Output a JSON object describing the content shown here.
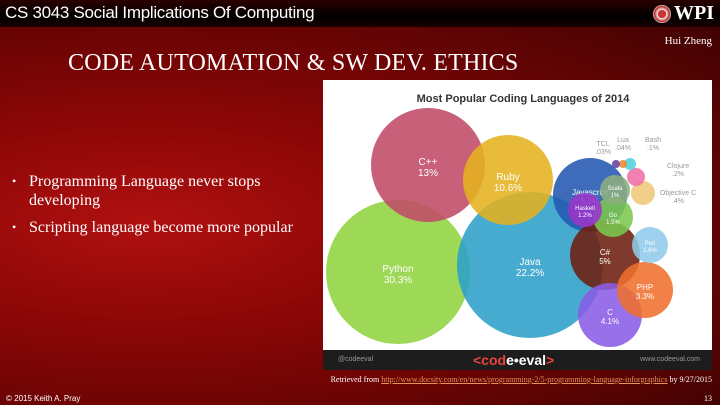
{
  "header": {
    "course": "CS 3043 Social Implications Of Computing",
    "logo": "WPI",
    "author": "Hui Zheng"
  },
  "slide": {
    "title": "CODE AUTOMATION & SW DEV. ETHICS",
    "bullets": [
      "Programming Language never stops developing",
      "Scripting language become more popular"
    ]
  },
  "infographic": {
    "title": "Most Popular Coding Languages of 2014",
    "footer_left": "@codeeval",
    "footer_brand_left": "<cod",
    "footer_brand_mid": "e•eval",
    "footer_brand_right": ">",
    "footer_right": "www.codeeval.com",
    "languages": [
      {
        "name": "Python",
        "share": "30.3%",
        "color": "#8fd43f"
      },
      {
        "name": "Java",
        "share": "22.2%",
        "color": "#2d9fc9"
      },
      {
        "name": "C++",
        "share": "13%",
        "color": "#c04a67"
      },
      {
        "name": "Ruby",
        "share": "10.6%",
        "color": "#e5b21f"
      },
      {
        "name": "Javascript",
        "share": "5.2%",
        "color": "#2458b0"
      },
      {
        "name": "C#",
        "share": "5%",
        "color": "#6e1f10"
      },
      {
        "name": "C",
        "share": "4.1%",
        "color": "#8a5ce6"
      },
      {
        "name": "PHP",
        "share": "3.3%",
        "color": "#ef6f2e"
      },
      {
        "name": "Perl",
        "share": "1.6%",
        "color": "#8fcbea"
      },
      {
        "name": "Go",
        "share": "1.5%",
        "color": "#7ac74f"
      },
      {
        "name": "Haskell",
        "share": "1.2%",
        "color": "#9b35c9"
      },
      {
        "name": "Scala",
        "share": "1%",
        "color": "#8cae7e"
      },
      {
        "name": "Objective C",
        "share": ".4%",
        "color": "#f0c878"
      },
      {
        "name": "Clojure",
        "share": ".2%",
        "color": "#ef6fa8"
      },
      {
        "name": "Bash",
        "share": ".1%",
        "color": "#4fd0e0"
      },
      {
        "name": "Lua",
        "share": ".04%",
        "color": "#f08a2a"
      },
      {
        "name": "TCL",
        "share": ".03%",
        "color": "#6a3fa0"
      }
    ]
  },
  "credit": {
    "prefix": "Retrieved from",
    "url": "http://www.docsity.com/en/news/programming-2/5-programming-language-inforgraphics",
    "suffix": "by 9/27/2015"
  },
  "footer": {
    "copyright": "© 2015 Keith A. Pray",
    "page": "13"
  }
}
